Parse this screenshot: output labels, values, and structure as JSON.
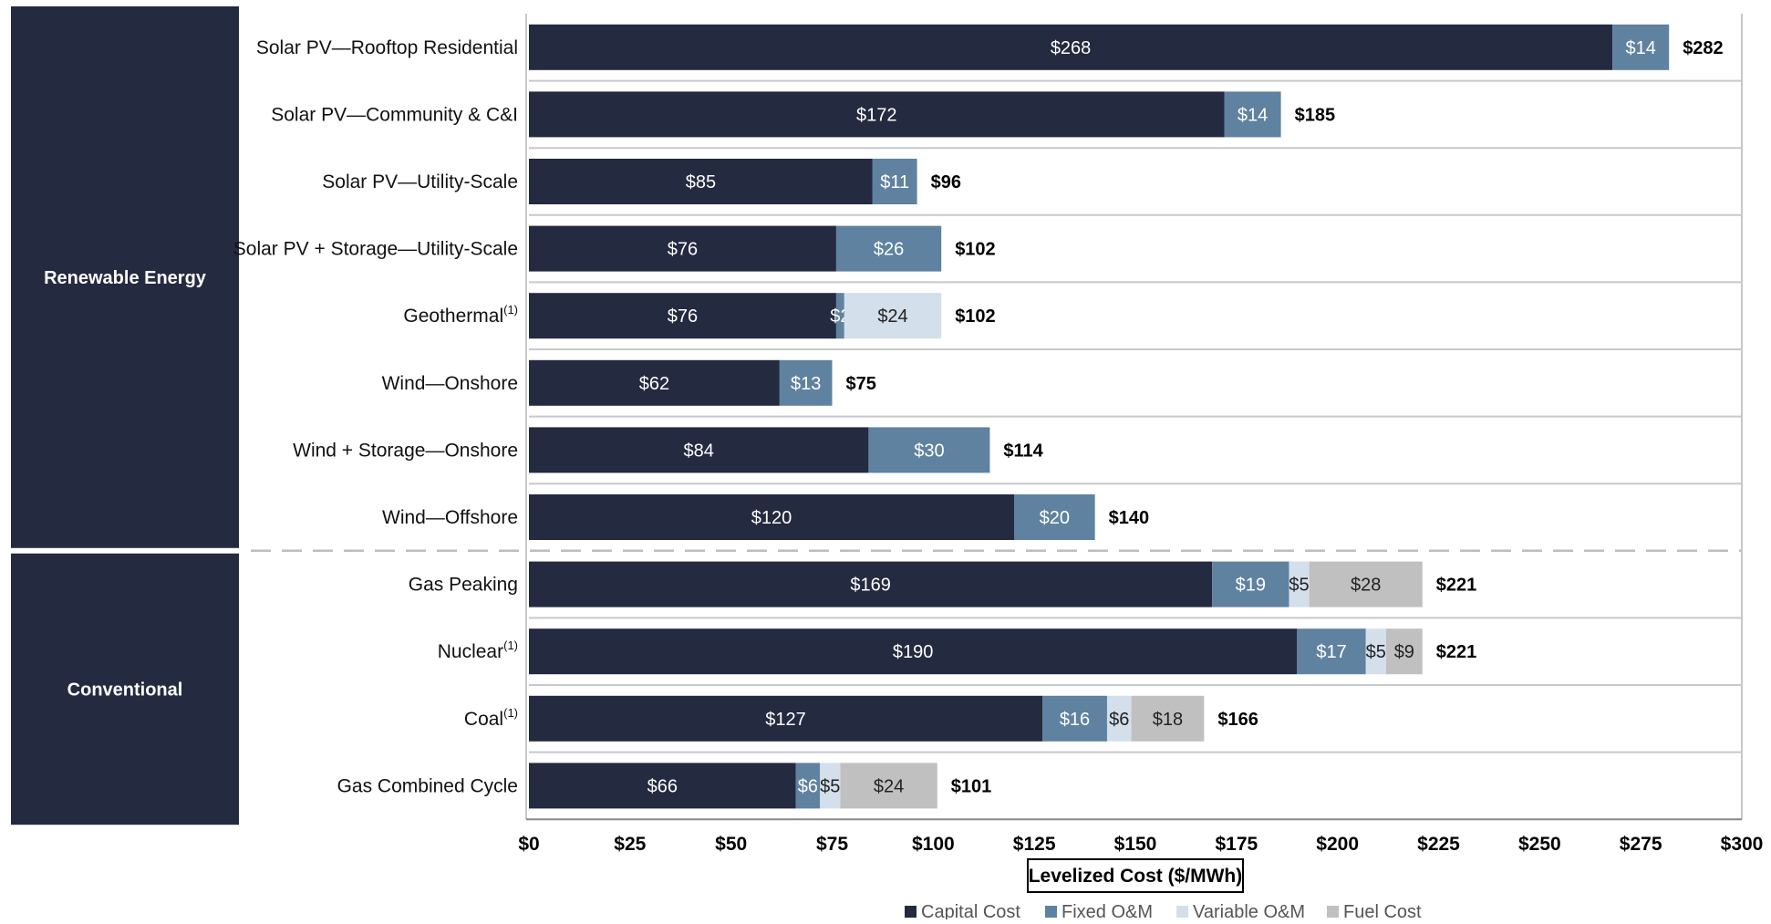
{
  "colors": {
    "capital": "#242a3f",
    "fixed": "#5f82a0",
    "variable": "#d3dfea",
    "fuel": "#c0c0c0",
    "panel": "#242a3f",
    "panel_text": "#ffffff",
    "grid": "#c8c8c8",
    "divider": "#bdbdbd"
  },
  "chart_data": {
    "type": "bar",
    "orientation": "horizontal",
    "stacked": true,
    "xlabel": "Levelized Cost ($/MWh)",
    "xlim": [
      0,
      300
    ],
    "xticks": [
      0,
      25,
      50,
      75,
      100,
      125,
      150,
      175,
      200,
      225,
      250,
      275,
      300
    ],
    "xtick_labels": [
      "$0",
      "$25",
      "$50",
      "$75",
      "$100",
      "$125",
      "$150",
      "$175",
      "$200",
      "$225",
      "$250",
      "$275",
      "$300"
    ],
    "legend_position": "bottom",
    "groups": [
      {
        "label": "Renewable Energy",
        "rows": 8
      },
      {
        "label": "Conventional",
        "rows": 4
      }
    ],
    "categories": [
      {
        "name": "Solar PV—Rooftop Residential",
        "sup": ""
      },
      {
        "name": "Solar PV—Community & C&I",
        "sup": ""
      },
      {
        "name": "Solar PV—Utility-Scale",
        "sup": ""
      },
      {
        "name": "Solar PV + Storage—Utility-Scale",
        "sup": ""
      },
      {
        "name": "Geothermal",
        "sup": "(1)"
      },
      {
        "name": "Wind—Onshore",
        "sup": ""
      },
      {
        "name": "Wind + Storage—Onshore",
        "sup": ""
      },
      {
        "name": "Wind—Offshore",
        "sup": ""
      },
      {
        "name": "Gas Peaking",
        "sup": ""
      },
      {
        "name": "Nuclear",
        "sup": "(1)"
      },
      {
        "name": "Coal",
        "sup": "(1)"
      },
      {
        "name": "Gas Combined Cycle",
        "sup": ""
      }
    ],
    "series": [
      {
        "name": "Capital Cost",
        "color_key": "capital",
        "values": [
          268,
          172,
          85,
          76,
          76,
          62,
          84,
          120,
          169,
          190,
          127,
          66
        ],
        "labels": [
          "$268",
          "$172",
          "$85",
          "$76",
          "$76",
          "$62",
          "$84",
          "$120",
          "$169",
          "$190",
          "$127",
          "$66"
        ]
      },
      {
        "name": "Fixed O&M",
        "color_key": "fixed",
        "values": [
          14,
          14,
          11,
          26,
          2,
          13,
          30,
          20,
          19,
          17,
          16,
          6
        ],
        "labels": [
          "$14",
          "$14",
          "$11",
          "$26",
          "$2",
          "$13",
          "$30",
          "$20",
          "$19",
          "$17",
          "$16",
          "$6"
        ]
      },
      {
        "name": "Variable O&M",
        "color_key": "variable",
        "values": [
          0,
          0,
          0,
          0,
          24,
          0,
          0,
          0,
          5,
          5,
          6,
          5
        ],
        "labels": [
          "",
          "",
          "",
          "",
          "$24",
          "",
          "",
          "",
          "$5",
          "$5",
          "$6",
          "$5"
        ]
      },
      {
        "name": "Fuel Cost",
        "color_key": "fuel",
        "values": [
          0,
          0,
          0,
          0,
          0,
          0,
          0,
          0,
          28,
          9,
          18,
          24
        ],
        "labels": [
          "",
          "",
          "",
          "",
          "",
          "",
          "",
          "",
          "$28",
          "$9",
          "$18",
          "$24"
        ]
      }
    ],
    "totals": [
      282,
      185,
      96,
      102,
      102,
      75,
      114,
      140,
      221,
      221,
      166,
      101
    ],
    "total_labels": [
      "$282",
      "$185",
      "$96",
      "$102",
      "$102",
      "$75",
      "$114",
      "$140",
      "$221",
      "$221",
      "$166",
      "$101"
    ]
  }
}
